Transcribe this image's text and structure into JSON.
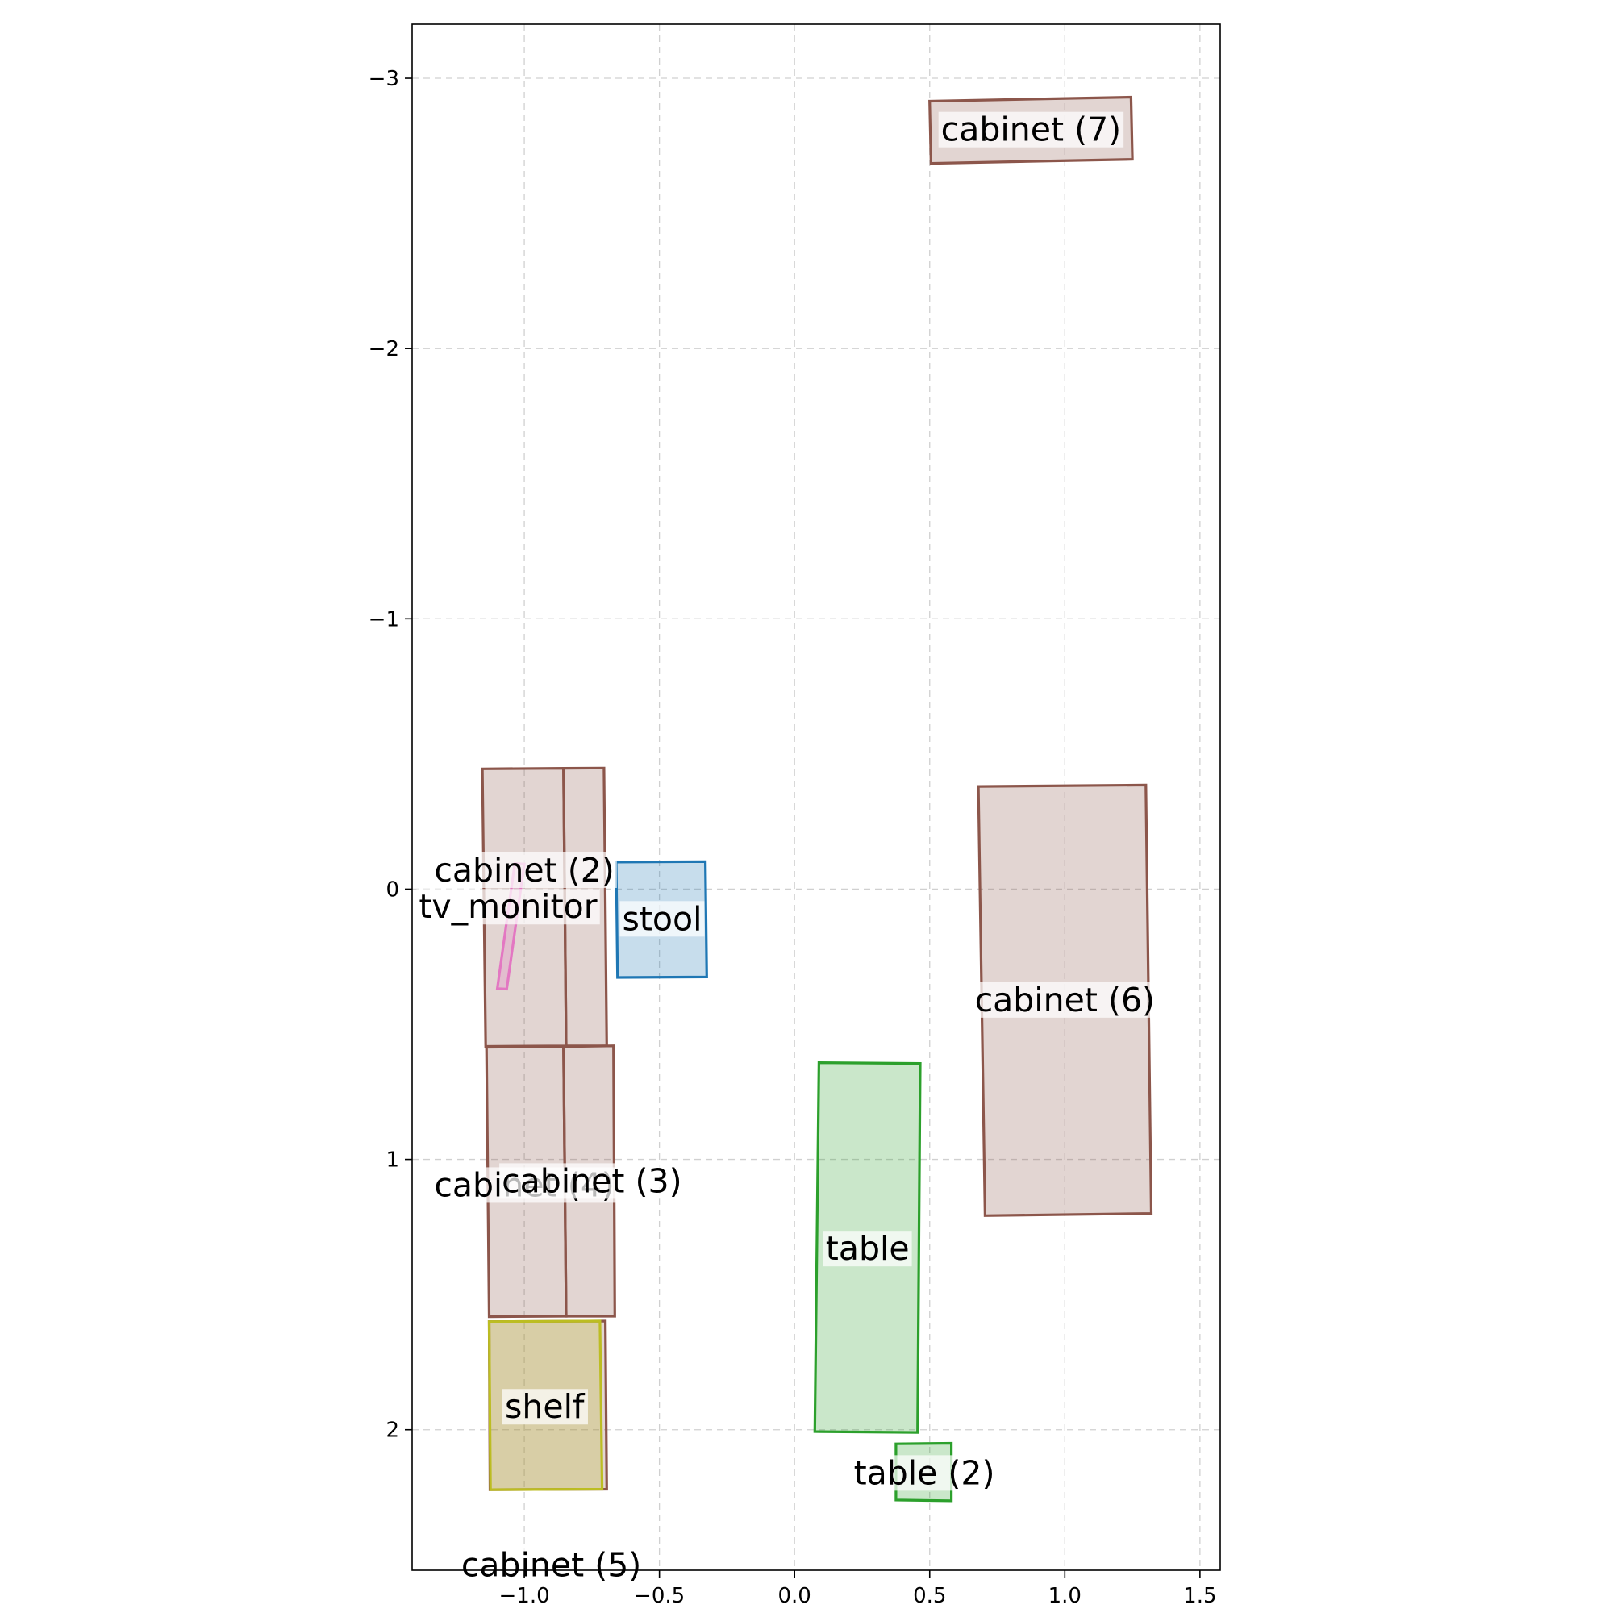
{
  "chart_data": {
    "type": "diagram",
    "x_ticks": [
      -1.0,
      -0.5,
      0.0,
      0.5,
      1.0,
      1.5
    ],
    "y_ticks": [
      -3,
      -2,
      -1,
      0,
      1,
      2
    ],
    "x_tick_labels": [
      "−1.0",
      "−0.5",
      "0.0",
      "0.5",
      "1.0",
      "1.5"
    ],
    "y_tick_labels": [
      "−3",
      "−2",
      "−1",
      "0",
      "1",
      "2"
    ],
    "xlim": [
      -1.415,
      1.575
    ],
    "ylim": [
      -3.2,
      2.52
    ],
    "y_inverted": true,
    "grid": true,
    "colors": {
      "cabinet": "#8c564b",
      "stool": "#1f77b4",
      "table": "#2ca02c",
      "shelf": "#bcbd22",
      "tv_monitor": "#e377c2"
    },
    "objects": [
      {
        "name": "cabinet (2)",
        "category": "cabinet",
        "corners": [
          [
            -1.155,
            -0.445
          ],
          [
            -0.855,
            -0.447
          ],
          [
            -0.845,
            0.58
          ],
          [
            -1.143,
            0.582
          ]
        ],
        "label_xy": [
          -1.0,
          -0.07
        ],
        "label_color": "#999999"
      },
      {
        "name": "cabinet",
        "category": "cabinet",
        "corners": [
          [
            -0.855,
            -0.447
          ],
          [
            -0.705,
            -0.448
          ],
          [
            -0.695,
            0.58
          ],
          [
            -0.845,
            0.58
          ]
        ],
        "label_xy": null
      },
      {
        "name": "cabinet (4)",
        "category": "cabinet",
        "corners": [
          [
            -1.14,
            0.585
          ],
          [
            -0.855,
            0.583
          ],
          [
            -0.845,
            1.58
          ],
          [
            -1.13,
            1.582
          ]
        ],
        "label_xy": [
          -1.0,
          1.095
        ],
        "label_color": "#000000"
      },
      {
        "name": "cabinet (3)",
        "category": "cabinet",
        "corners": [
          [
            -0.855,
            0.583
          ],
          [
            -0.67,
            0.58
          ],
          [
            -0.665,
            1.58
          ],
          [
            -0.845,
            1.58
          ]
        ],
        "label_xy": [
          -0.75,
          1.08
        ],
        "label_color": "#999999"
      },
      {
        "name": "cabinet (5)",
        "category": "cabinet",
        "corners": [
          [
            -1.13,
            1.6
          ],
          [
            -0.7,
            1.598
          ],
          [
            -0.695,
            2.22
          ],
          [
            -1.127,
            2.222
          ]
        ],
        "label_xy": [
          -0.9,
          2.5
        ],
        "label_color": "#000000"
      },
      {
        "name": "shelf",
        "category": "shelf",
        "corners": [
          [
            -1.13,
            1.6
          ],
          [
            -0.72,
            1.598
          ],
          [
            -0.712,
            2.22
          ],
          [
            -1.125,
            2.222
          ]
        ],
        "label_xy": [
          -0.925,
          1.915
        ],
        "label_color": "#000000"
      },
      {
        "name": "tv_monitor",
        "category": "tv_monitor",
        "corners": [
          [
            -1.035,
            -0.095
          ],
          [
            -1.0,
            -0.093
          ],
          [
            -1.065,
            0.37
          ],
          [
            -1.1,
            0.368
          ]
        ],
        "label_xy": [
          -1.06,
          0.065
        ],
        "label_color": "#000000"
      },
      {
        "name": "stool",
        "category": "stool",
        "corners": [
          [
            -0.66,
            -0.1
          ],
          [
            -0.33,
            -0.102
          ],
          [
            -0.325,
            0.325
          ],
          [
            -0.655,
            0.327
          ]
        ],
        "label_xy": [
          -0.49,
          0.11
        ],
        "label_color": "#000000"
      },
      {
        "name": "cabinet (6)",
        "category": "cabinet",
        "corners": [
          [
            0.68,
            -0.38
          ],
          [
            1.3,
            -0.385
          ],
          [
            1.32,
            1.2
          ],
          [
            0.705,
            1.208
          ]
        ],
        "label_xy": [
          1.0,
          0.41
        ],
        "label_color": "#000000"
      },
      {
        "name": "table",
        "category": "table",
        "corners": [
          [
            0.09,
            0.642
          ],
          [
            0.465,
            0.645
          ],
          [
            0.455,
            2.01
          ],
          [
            0.075,
            2.007
          ]
        ],
        "label_xy": [
          0.27,
          1.33
        ],
        "label_color": "#000000"
      },
      {
        "name": "table (2)",
        "category": "table",
        "corners": [
          [
            0.375,
            2.052
          ],
          [
            0.58,
            2.05
          ],
          [
            0.58,
            2.263
          ],
          [
            0.375,
            2.26
          ]
        ],
        "label_xy": [
          0.48,
          2.16
        ],
        "label_color": "#000000"
      },
      {
        "name": "cabinet (7)",
        "category": "cabinet",
        "corners": [
          [
            0.5,
            -2.915
          ],
          [
            1.245,
            -2.93
          ],
          [
            1.25,
            -2.7
          ],
          [
            0.505,
            -2.685
          ]
        ],
        "label_xy": [
          0.875,
          -2.81
        ],
        "label_color": "#000000"
      }
    ]
  }
}
